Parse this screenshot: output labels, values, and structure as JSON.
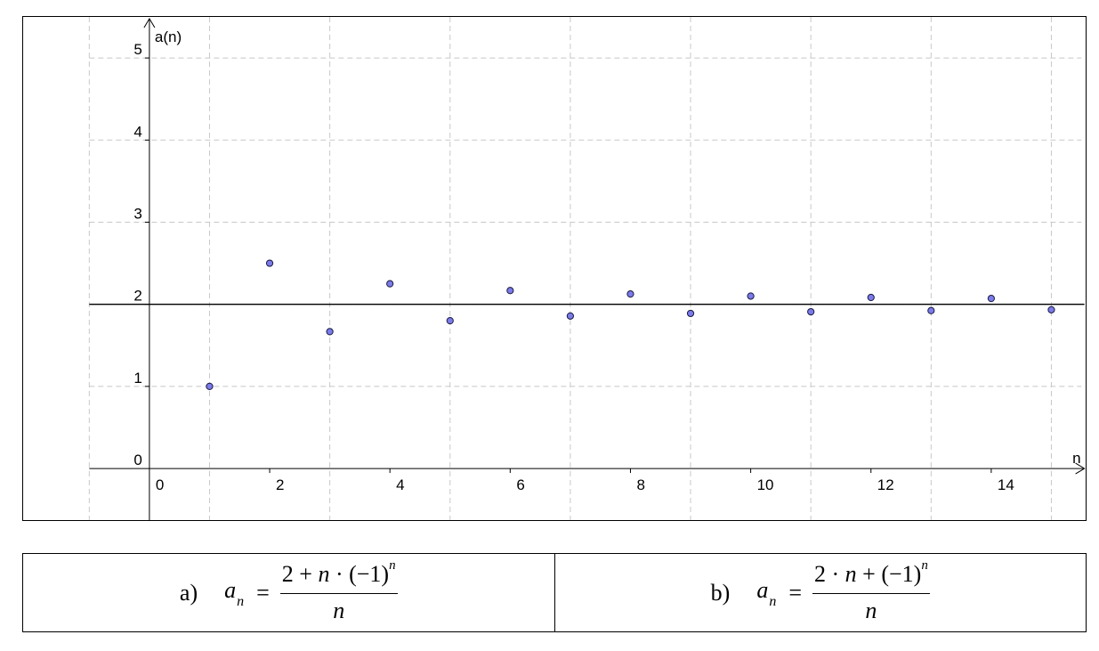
{
  "chart_data": {
    "type": "scatter",
    "xlabel": "n",
    "ylabel": "a(n)",
    "xlim": [
      -2.1,
      15.6
    ],
    "ylim": [
      -0.65,
      5.5
    ],
    "grid": true,
    "grid_style": "dashed",
    "x_ticks": [
      0,
      2,
      4,
      6,
      8,
      10,
      12,
      14
    ],
    "y_ticks": [
      0,
      1,
      2,
      3,
      4,
      5
    ],
    "reference_line": {
      "y": 2
    },
    "point_color": "#7b7bea",
    "x": [
      1,
      2,
      3,
      4,
      5,
      6,
      7,
      8,
      9,
      10,
      11,
      12,
      13,
      14,
      15
    ],
    "y": [
      1,
      2.5,
      1.667,
      2.25,
      1.8,
      2.167,
      1.857,
      2.125,
      1.889,
      2.1,
      1.909,
      2.083,
      1.923,
      2.071,
      1.933
    ]
  },
  "formulas": {
    "a": {
      "label": "a)",
      "var": "a",
      "sub": "n",
      "equals": "=",
      "num_pre": "2 + ",
      "num_n": "n",
      "num_mid": " · (−1)",
      "num_exp": "n",
      "den": "n"
    },
    "b": {
      "label": "b)",
      "var": "a",
      "sub": "n",
      "equals": "=",
      "num_pre": "2 · ",
      "num_n": "n",
      "num_mid": " + (−1)",
      "num_exp": "n",
      "den": "n"
    }
  }
}
